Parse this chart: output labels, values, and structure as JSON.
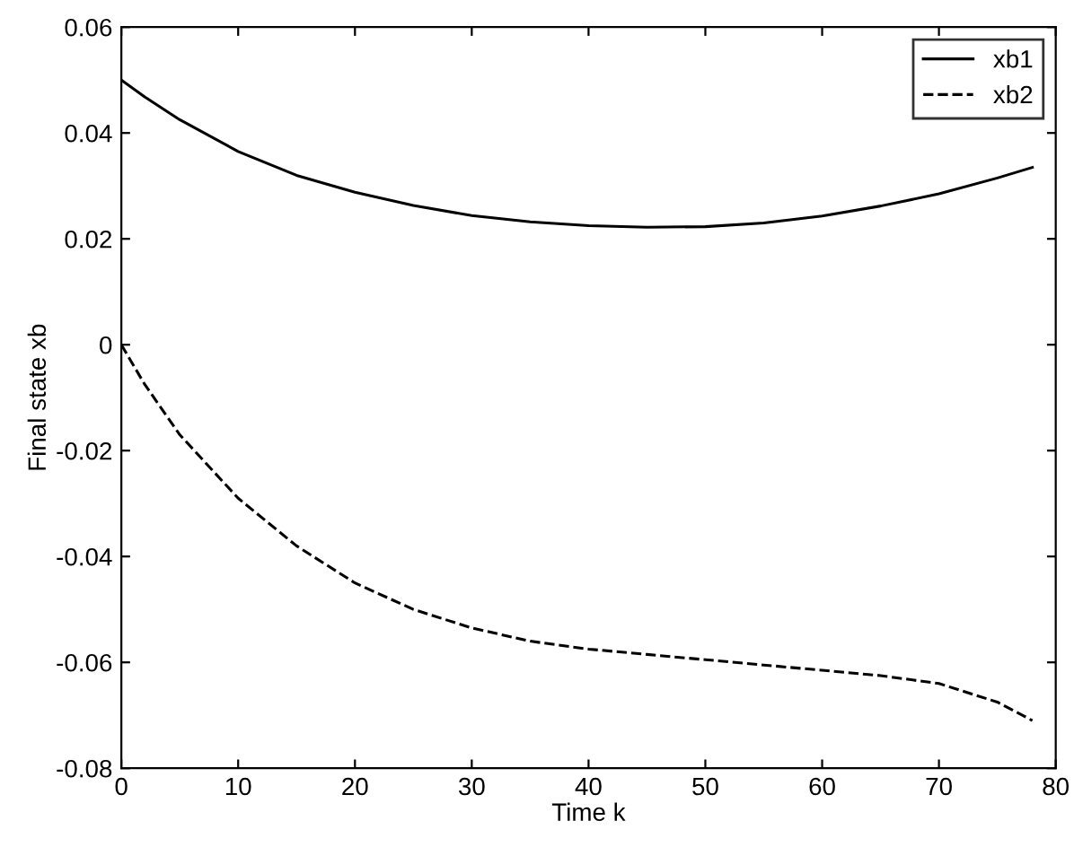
{
  "chart_data": {
    "type": "line",
    "xlabel": "Time k",
    "ylabel": "Final state xb",
    "x": [
      0,
      2,
      5,
      10,
      15,
      20,
      25,
      30,
      35,
      40,
      45,
      50,
      55,
      60,
      65,
      70,
      75,
      78
    ],
    "series": [
      {
        "name": "xb1",
        "color": "#000000",
        "line_style": "solid",
        "values": [
          0.05,
          0.0468,
          0.0425,
          0.0365,
          0.032,
          0.0288,
          0.0263,
          0.0244,
          0.0232,
          0.0225,
          0.0222,
          0.0223,
          0.023,
          0.0243,
          0.0262,
          0.0285,
          0.0315,
          0.0335
        ]
      },
      {
        "name": "xb2",
        "color": "#000000",
        "line_style": "dashed",
        "values": [
          0,
          -0.0075,
          -0.017,
          -0.029,
          -0.038,
          -0.045,
          -0.05,
          -0.0535,
          -0.056,
          -0.0575,
          -0.0585,
          -0.0595,
          -0.0605,
          -0.0615,
          -0.0625,
          -0.064,
          -0.0675,
          -0.071
        ]
      }
    ],
    "xlim": [
      0,
      80
    ],
    "xticks": [
      0,
      10,
      20,
      30,
      40,
      50,
      60,
      70,
      80
    ],
    "ylim": [
      -0.08,
      0.06
    ],
    "yticks": [
      {
        "value": -0.08,
        "label": "-0.08"
      },
      {
        "value": -0.06,
        "label": "-0.06"
      },
      {
        "value": -0.04,
        "label": "-0.04"
      },
      {
        "value": -0.02,
        "label": "-0.02"
      },
      {
        "value": 0,
        "label": "0"
      },
      {
        "value": 0.02,
        "label": "0.02"
      },
      {
        "value": 0.04,
        "label": "0.04"
      },
      {
        "value": 0.06,
        "label": "0.06"
      }
    ],
    "legend": "top right",
    "grid": false,
    "marker": "none"
  }
}
